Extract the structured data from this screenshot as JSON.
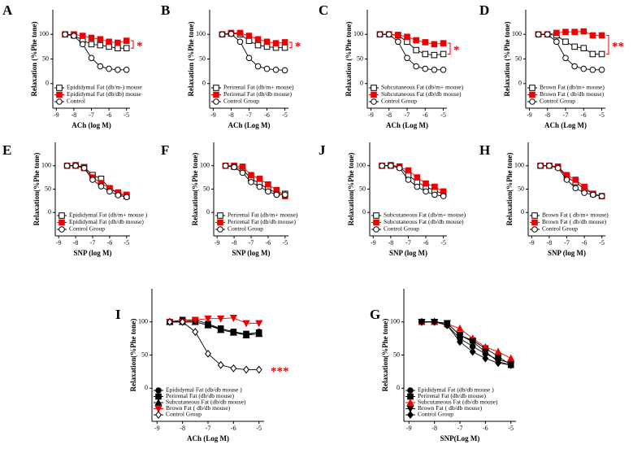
{
  "chart_data": [
    {
      "type": "line",
      "label": "A",
      "xlabel": "ACh (log M)",
      "ylabel": "Relaxation (%Phe tone)",
      "annotation": "*",
      "xlim": [
        -9.2,
        -4.8
      ],
      "xticks": [
        -9,
        -8,
        -7,
        -6,
        -5
      ],
      "ylim": [
        -50,
        150
      ],
      "yticks": [
        0,
        50,
        100
      ],
      "x": [
        -8.5,
        -8,
        -7.5,
        -7,
        -6.5,
        -6,
        -5.5,
        -5
      ],
      "series": [
        {
          "name": "Epididymal Fat (db/m-) mouse",
          "color": "#000",
          "marker": "square-open",
          "values": [
            100,
            98,
            88,
            80,
            78,
            75,
            72,
            72
          ]
        },
        {
          "name": "Epididymal Fat (db/db) mouse",
          "color": "#e00",
          "marker": "square",
          "values": [
            100,
            100,
            97,
            93,
            90,
            85,
            83,
            87
          ]
        },
        {
          "name": "Control",
          "color": "#000",
          "marker": "circle-open",
          "values": [
            100,
            97,
            80,
            52,
            35,
            30,
            28,
            28
          ]
        }
      ]
    },
    {
      "type": "line",
      "label": "B",
      "xlabel": "ACh (Log M)",
      "ylabel": "Relaxation (%Phe tone)",
      "annotation": "*",
      "xlim": [
        -9.2,
        -4.8
      ],
      "xticks": [
        -9,
        -8,
        -7,
        -6,
        -5
      ],
      "ylim": [
        -50,
        150
      ],
      "yticks": [
        0,
        50,
        100
      ],
      "x": [
        -8.5,
        -8,
        -7.5,
        -7,
        -6.5,
        -6,
        -5.5,
        -5
      ],
      "series": [
        {
          "name": "Perirenal Fat (db/m+ mouse)",
          "color": "#000",
          "marker": "square-open",
          "values": [
            100,
            102,
            100,
            87,
            78,
            75,
            73,
            73
          ]
        },
        {
          "name": "Perirenal Fat (db/db mouse)",
          "color": "#e00",
          "marker": "square",
          "values": [
            100,
            103,
            103,
            97,
            90,
            85,
            82,
            84
          ]
        },
        {
          "name": "Control Group",
          "color": "#000",
          "marker": "circle-open",
          "values": [
            100,
            101,
            85,
            52,
            35,
            30,
            28,
            27
          ]
        }
      ]
    },
    {
      "type": "line",
      "label": "C",
      "xlabel": "ACh (Log M)",
      "ylabel": "Relaxation (%Phe tone)",
      "annotation": "*",
      "xlim": [
        -9.2,
        -4.8
      ],
      "xticks": [
        -9,
        -8,
        -7,
        -6,
        -5
      ],
      "ylim": [
        -50,
        150
      ],
      "yticks": [
        0,
        50,
        100
      ],
      "x": [
        -8.5,
        -8,
        -7.5,
        -7,
        -6.5,
        -6,
        -5.5,
        -5
      ],
      "series": [
        {
          "name": "Subcutaneous Fat (db/m+ mouse)",
          "color": "#000",
          "marker": "square-open",
          "values": [
            100,
            100,
            98,
            85,
            68,
            60,
            58,
            60
          ]
        },
        {
          "name": "Subcutaneous Fat (db/db mouse)",
          "color": "#e00",
          "marker": "square",
          "values": [
            100,
            100,
            99,
            95,
            88,
            84,
            80,
            82
          ]
        },
        {
          "name": "Control Group",
          "color": "#000",
          "marker": "circle-open",
          "values": [
            100,
            100,
            85,
            52,
            35,
            30,
            28,
            28
          ]
        }
      ]
    },
    {
      "type": "line",
      "label": "D",
      "xlabel": "ACh (Log M)",
      "ylabel": "Relaxation (%Phe tone)",
      "annotation": "**",
      "xlim": [
        -9.2,
        -4.8
      ],
      "xticks": [
        -9,
        -8,
        -7,
        -6,
        -5
      ],
      "ylim": [
        -50,
        150
      ],
      "yticks": [
        0,
        50,
        100
      ],
      "x": [
        -8.5,
        -8,
        -7.5,
        -7,
        -6.5,
        -6,
        -5.5,
        -5
      ],
      "series": [
        {
          "name": "Brown Fat (db/m+ mouse)",
          "color": "#000",
          "marker": "square-open",
          "values": [
            100,
            100,
            98,
            85,
            75,
            72,
            60,
            60
          ]
        },
        {
          "name": "Brown Fat ( db/db mouse)",
          "color": "#e00",
          "marker": "square",
          "values": [
            100,
            100,
            103,
            105,
            105,
            106,
            98,
            98
          ]
        },
        {
          "name": "Control Group",
          "color": "#000",
          "marker": "circle-open",
          "values": [
            100,
            100,
            85,
            52,
            35,
            30,
            28,
            28
          ]
        }
      ]
    },
    {
      "type": "line",
      "label": "E",
      "xlabel": "SNP (log M)",
      "ylabel": "Relaxation(%Phe tone)",
      "xlim": [
        -9.2,
        -4.8
      ],
      "xticks": [
        -9,
        -8,
        -7,
        -6,
        -5
      ],
      "ylim": [
        -50,
        150
      ],
      "yticks": [
        0,
        50,
        100
      ],
      "x": [
        -8.5,
        -8,
        -7.5,
        -7,
        -6.5,
        -6,
        -5.5,
        -5
      ],
      "series": [
        {
          "name": "Epididymal Fat (db/m+ mouse )",
          "color": "#000",
          "marker": "square-open",
          "values": [
            100,
            101,
            97,
            80,
            72,
            52,
            40,
            35
          ]
        },
        {
          "name": "Epididymal Fat (db/db mouse)",
          "color": "#e00",
          "marker": "square",
          "values": [
            100,
            100,
            95,
            75,
            63,
            52,
            43,
            38
          ]
        },
        {
          "name": "Control Group",
          "color": "#000",
          "marker": "circle-open",
          "values": [
            100,
            100,
            95,
            70,
            56,
            45,
            37,
            33
          ]
        }
      ]
    },
    {
      "type": "line",
      "label": "F",
      "xlabel": "SNP (log M)",
      "ylabel": "Relaxation(%Phe tone)",
      "xlim": [
        -9.2,
        -4.8
      ],
      "xticks": [
        -9,
        -8,
        -7,
        -6,
        -5
      ],
      "ylim": [
        -50,
        150
      ],
      "yticks": [
        0,
        50,
        100
      ],
      "x": [
        -8.5,
        -8,
        -7.5,
        -7,
        -6.5,
        -6,
        -5.5,
        -5
      ],
      "series": [
        {
          "name": "Perirenal Fat (db/m+ mouse)",
          "color": "#000",
          "marker": "square-open",
          "values": [
            100,
            98,
            92,
            72,
            62,
            50,
            42,
            40
          ]
        },
        {
          "name": "Perirenal Fat (db/db mouse)",
          "color": "#e00",
          "marker": "square",
          "values": [
            100,
            100,
            98,
            80,
            72,
            60,
            48,
            35
          ]
        },
        {
          "name": "Control Group",
          "color": "#000",
          "marker": "circle-open",
          "values": [
            100,
            97,
            85,
            65,
            55,
            45,
            38,
            38
          ]
        }
      ]
    },
    {
      "type": "line",
      "label": "J",
      "xlabel": "SNP (log M)",
      "ylabel": "Relaxation(%Phe tone)",
      "xlim": [
        -9.2,
        -4.8
      ],
      "xticks": [
        -9,
        -8,
        -7,
        -6,
        -5
      ],
      "ylim": [
        -50,
        150
      ],
      "yticks": [
        0,
        50,
        100
      ],
      "x": [
        -8.5,
        -8,
        -7.5,
        -7,
        -6.5,
        -6,
        -5.5,
        -5
      ],
      "series": [
        {
          "name": "Subcutaneous Fat (db/m+ mouse)",
          "color": "#000",
          "marker": "square-open",
          "values": [
            100,
            101,
            98,
            80,
            65,
            55,
            47,
            40
          ]
        },
        {
          "name": "Subcutaneous Fat (db/db mouse)",
          "color": "#e00",
          "marker": "square",
          "values": [
            100,
            100,
            97,
            90,
            75,
            62,
            55,
            45
          ]
        },
        {
          "name": "Control Group",
          "color": "#000",
          "marker": "circle-open",
          "values": [
            100,
            100,
            95,
            70,
            55,
            45,
            38,
            35
          ]
        }
      ]
    },
    {
      "type": "line",
      "label": "H",
      "xlabel": "SNP (log M)",
      "ylabel": "Relaxation(%Phe tone)",
      "xlim": [
        -9.2,
        -4.8
      ],
      "xticks": [
        -9,
        -8,
        -7,
        -6,
        -5
      ],
      "ylim": [
        -50,
        150
      ],
      "yticks": [
        0,
        50,
        100
      ],
      "x": [
        -8.5,
        -8,
        -7.5,
        -7,
        -6.5,
        -6,
        -5.5,
        -5
      ],
      "series": [
        {
          "name": "Brown Fat ( db/m+ mouse)",
          "color": "#000",
          "marker": "square-open",
          "values": [
            100,
            100,
            98,
            75,
            65,
            50,
            40,
            35
          ]
        },
        {
          "name": "Brown Fat ( db/db mouse)",
          "color": "#e00",
          "marker": "square",
          "values": [
            100,
            100,
            98,
            80,
            70,
            55,
            40,
            35
          ]
        },
        {
          "name": "Control Group",
          "color": "#000",
          "marker": "circle-open",
          "values": [
            100,
            100,
            95,
            70,
            52,
            42,
            38,
            35
          ]
        }
      ]
    },
    {
      "type": "line",
      "label": "I",
      "xlabel": "ACh (Log M)",
      "ylabel": "Relaxation(%Phe tone)",
      "annotation": "***",
      "xlim": [
        -9.2,
        -4.8
      ],
      "xticks": [
        -9,
        -8,
        -7,
        -6,
        -5
      ],
      "ylim": [
        -50,
        150
      ],
      "yticks": [
        0,
        50,
        100
      ],
      "x": [
        -8.5,
        -8,
        -7.5,
        -7,
        -6.5,
        -6,
        -5.5,
        -5
      ],
      "series": [
        {
          "name": "Epididymal Fat (db/db mouse )",
          "color": "#000",
          "marker": "circle",
          "values": [
            100,
            100,
            100,
            95,
            90,
            85,
            80,
            85
          ]
        },
        {
          "name": "Perirenal Fat (db/db mouse)",
          "color": "#000",
          "marker": "square",
          "values": [
            100,
            103,
            103,
            97,
            90,
            85,
            82,
            84
          ]
        },
        {
          "name": "Subcutaneous Fat (db/db mouse)",
          "color": "#000",
          "marker": "triangle",
          "values": [
            100,
            100,
            100,
            95,
            88,
            84,
            80,
            82
          ]
        },
        {
          "name": "Brown Fat ( db/db mouse)",
          "color": "#e00",
          "marker": "triangle-down",
          "values": [
            100,
            100,
            103,
            105,
            105,
            106,
            98,
            98
          ]
        },
        {
          "name": "Control Group",
          "color": "#000",
          "marker": "diamond-open",
          "values": [
            100,
            100,
            85,
            52,
            35,
            30,
            28,
            28
          ]
        }
      ]
    },
    {
      "type": "line",
      "label": "G",
      "xlabel": "SNP(Log M)",
      "ylabel": "Relaxation(%Phe tone)",
      "xlim": [
        -9.2,
        -4.8
      ],
      "xticks": [
        -9,
        -8,
        -7,
        -6,
        -5
      ],
      "ylim": [
        -50,
        150
      ],
      "yticks": [
        0,
        50,
        100
      ],
      "x": [
        -8.5,
        -8,
        -7.5,
        -7,
        -6.5,
        -6,
        -5.5,
        -5
      ],
      "series": [
        {
          "name": "Epididymal Fat (db/db mouse )",
          "color": "#000",
          "marker": "circle",
          "values": [
            100,
            100,
            95,
            75,
            63,
            52,
            43,
            38
          ]
        },
        {
          "name": "Perirenal Fat (db/db mouse)",
          "color": "#000",
          "marker": "square",
          "values": [
            100,
            100,
            98,
            80,
            72,
            60,
            48,
            35
          ]
        },
        {
          "name": "Subcutaneous Fat (db/db mouse)",
          "color": "#e00",
          "marker": "triangle",
          "values": [
            100,
            100,
            97,
            90,
            75,
            62,
            55,
            45
          ]
        },
        {
          "name": "Brown Fat ( db/db mouse)",
          "color": "#000",
          "marker": "triangle-down",
          "values": [
            100,
            100,
            98,
            80,
            70,
            55,
            40,
            35
          ]
        },
        {
          "name": "Control Group",
          "color": "#000",
          "marker": "diamond",
          "values": [
            100,
            100,
            95,
            70,
            55,
            45,
            38,
            35
          ]
        }
      ]
    }
  ]
}
